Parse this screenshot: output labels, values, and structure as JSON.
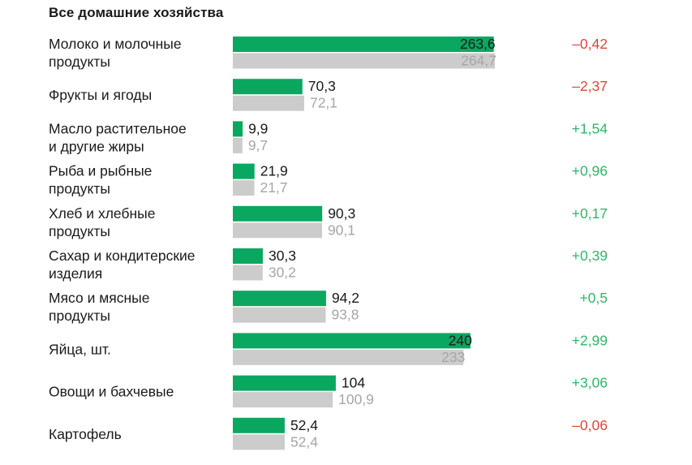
{
  "title": "Все домашние хозяйства",
  "colors": {
    "current": "#0aa760",
    "previous": "#cccccc",
    "positive": "#2fb56b",
    "negative": "#e0453c",
    "text": "#1a1a1a",
    "previous_text": "#a6a6a6"
  },
  "chart_data": {
    "type": "bar",
    "orientation": "horizontal",
    "title": "Все домашние хозяйства",
    "categories": [
      [
        "Молоко и молочные",
        "продукты"
      ],
      [
        "Фрукты и ягоды"
      ],
      [
        "Масло растительное",
        "и другие жиры"
      ],
      [
        "Рыба и рыбные",
        "продукты"
      ],
      [
        "Хлеб и хлебные",
        "продукты"
      ],
      [
        "Сахар и кондитерские",
        "изделия"
      ],
      [
        "Мясо и мясные",
        "продукты"
      ],
      [
        "Яйца, шт."
      ],
      [
        "Овощи и бахчевые"
      ],
      [
        "Картофель"
      ]
    ],
    "series": [
      {
        "color": "#0aa760",
        "values": [
          263.6,
          70.3,
          9.9,
          21.9,
          90.3,
          30.3,
          94.2,
          240,
          104,
          52.4
        ],
        "labels": [
          "263,6",
          "70,3",
          "9,9",
          "21,9",
          "90,3",
          "30,3",
          "94,2",
          "240",
          "104",
          "52,4"
        ]
      },
      {
        "color": "#cccccc",
        "values": [
          264.7,
          72.1,
          9.7,
          21.7,
          90.1,
          30.2,
          93.8,
          233,
          100.9,
          52.4
        ],
        "labels": [
          "264,7",
          "72,1",
          "9,7",
          "21,7",
          "90,1",
          "30,2",
          "93,8",
          "233",
          "100,9",
          "52,4"
        ]
      }
    ],
    "change": {
      "values": [
        -0.42,
        -2.37,
        1.54,
        0.96,
        0.17,
        0.39,
        0.5,
        2.99,
        3.06,
        -0.06
      ],
      "labels": [
        "–0,42",
        "–2,37",
        "+1,54",
        "+0,96",
        "+0,17",
        "+0,39",
        "+0,5",
        "+2,99",
        "+3,06",
        "–0,06"
      ]
    },
    "xlim": [
      0,
      264.7
    ],
    "grid": false,
    "legend": "none"
  }
}
